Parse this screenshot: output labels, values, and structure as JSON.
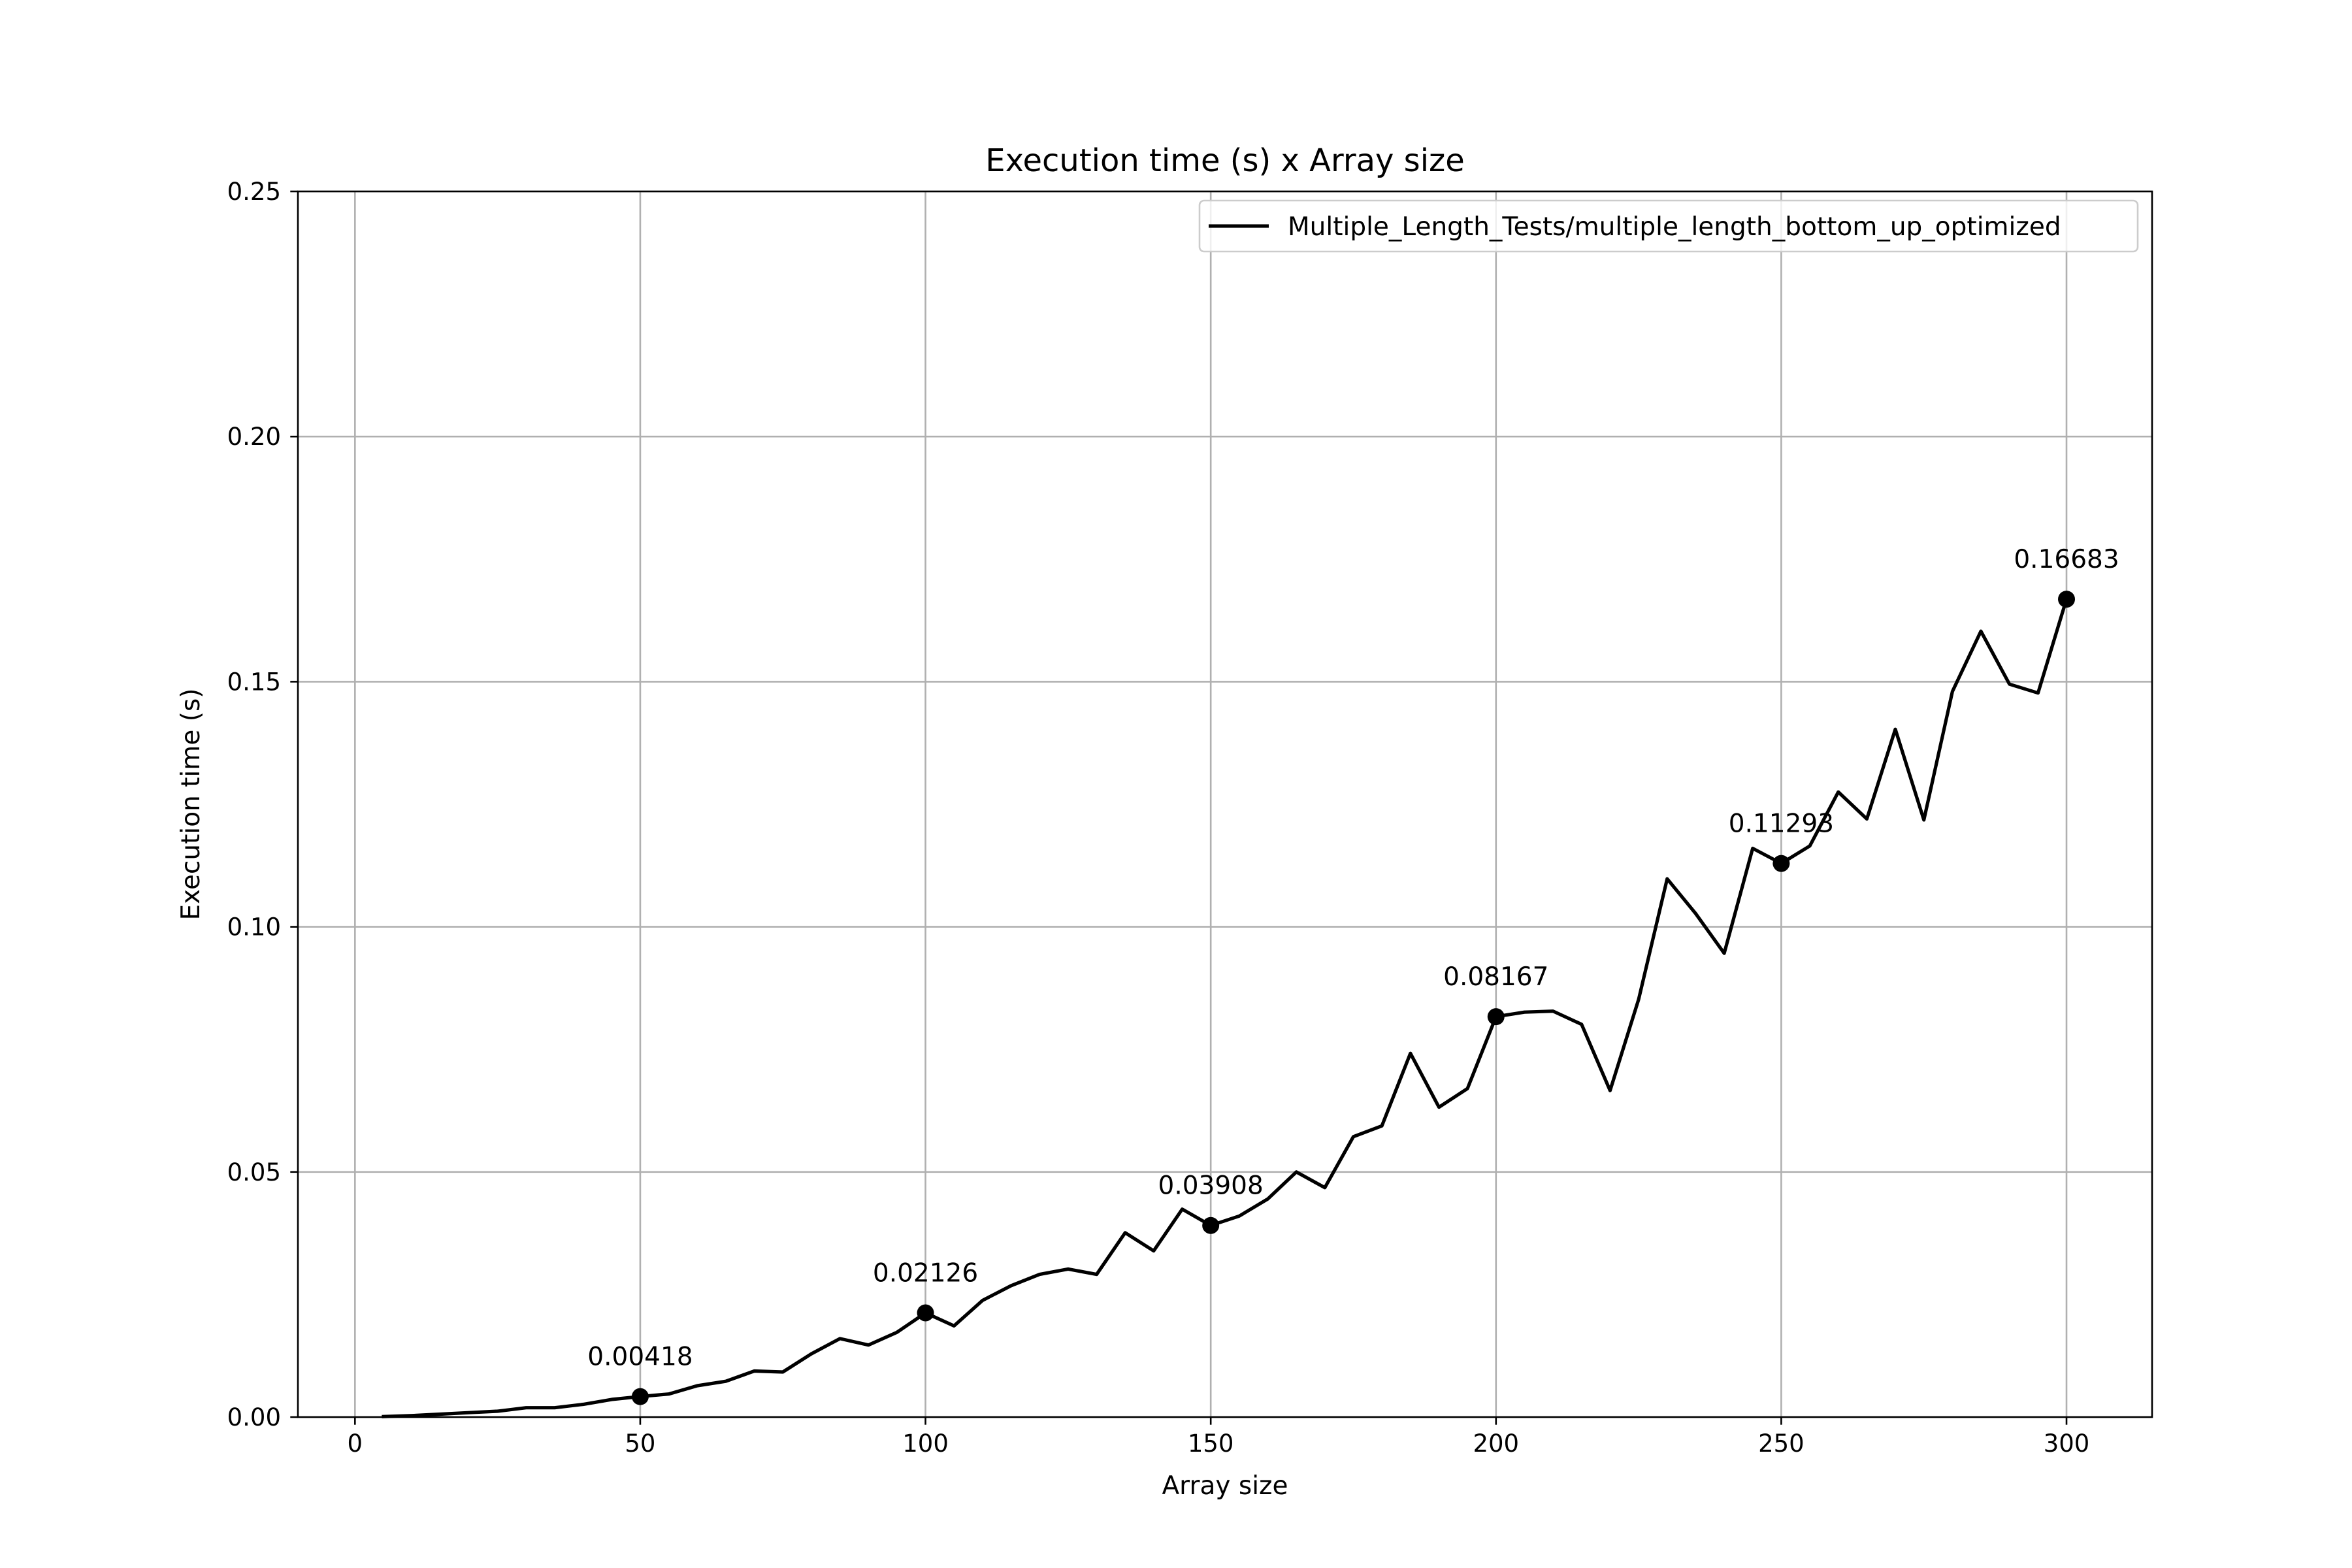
{
  "chart_data": {
    "type": "line",
    "title": "Execution time (s) x Array size",
    "xlabel": "Array size",
    "ylabel": "Execution time (s)",
    "xlim": [
      -10,
      315
    ],
    "ylim": [
      0,
      0.25
    ],
    "xticks": [
      0,
      50,
      100,
      150,
      200,
      250,
      300
    ],
    "xtick_labels": [
      "0",
      "50",
      "100",
      "150",
      "200",
      "250",
      "300"
    ],
    "yticks": [
      0,
      0.05,
      0.1,
      0.15,
      0.2,
      0.25
    ],
    "ytick_labels": [
      "0.00",
      "0.05",
      "0.10",
      "0.15",
      "0.20",
      "0.25"
    ],
    "grid": true,
    "legend_position": "top-right",
    "line_color": "#000000",
    "series": [
      {
        "name": "Multiple_Length_Tests/multiple_length_bottom_up_optimized",
        "x": [
          5,
          10,
          15,
          20,
          25,
          30,
          35,
          40,
          45,
          50,
          55,
          60,
          65,
          70,
          75,
          80,
          85,
          90,
          95,
          100,
          105,
          110,
          115,
          120,
          125,
          130,
          135,
          140,
          145,
          150,
          155,
          160,
          165,
          170,
          175,
          180,
          185,
          190,
          195,
          200,
          205,
          210,
          215,
          220,
          225,
          230,
          235,
          240,
          245,
          250,
          255,
          260,
          265,
          270,
          275,
          280,
          285,
          290,
          295,
          300
        ],
        "y": [
          0.0001,
          0.0003,
          0.0006,
          0.0009,
          0.0012,
          0.0019,
          0.0019,
          0.0026,
          0.0036,
          0.00418,
          0.0047,
          0.0064,
          0.0073,
          0.0094,
          0.0092,
          0.0129,
          0.016,
          0.0147,
          0.0173,
          0.02126,
          0.0186,
          0.0238,
          0.0268,
          0.0291,
          0.0302,
          0.0291,
          0.0376,
          0.0339,
          0.0424,
          0.03908,
          0.041,
          0.0445,
          0.05,
          0.0468,
          0.0572,
          0.0594,
          0.0742,
          0.0632,
          0.067,
          0.08167,
          0.0826,
          0.0828,
          0.0801,
          0.0666,
          0.0852,
          0.1098,
          0.1027,
          0.0946,
          0.116,
          0.11293,
          0.1165,
          0.1275,
          0.122,
          0.1403,
          0.1218,
          0.148,
          0.1603,
          0.1495,
          0.1477,
          0.16683
        ]
      }
    ],
    "markers": [
      {
        "x": 50,
        "y": 0.00418,
        "label": "0.00418"
      },
      {
        "x": 100,
        "y": 0.02126,
        "label": "0.02126"
      },
      {
        "x": 150,
        "y": 0.03908,
        "label": "0.03908"
      },
      {
        "x": 200,
        "y": 0.08167,
        "label": "0.08167"
      },
      {
        "x": 250,
        "y": 0.11293,
        "label": "0.11293"
      },
      {
        "x": 300,
        "y": 0.16683,
        "label": "0.16683"
      }
    ]
  }
}
